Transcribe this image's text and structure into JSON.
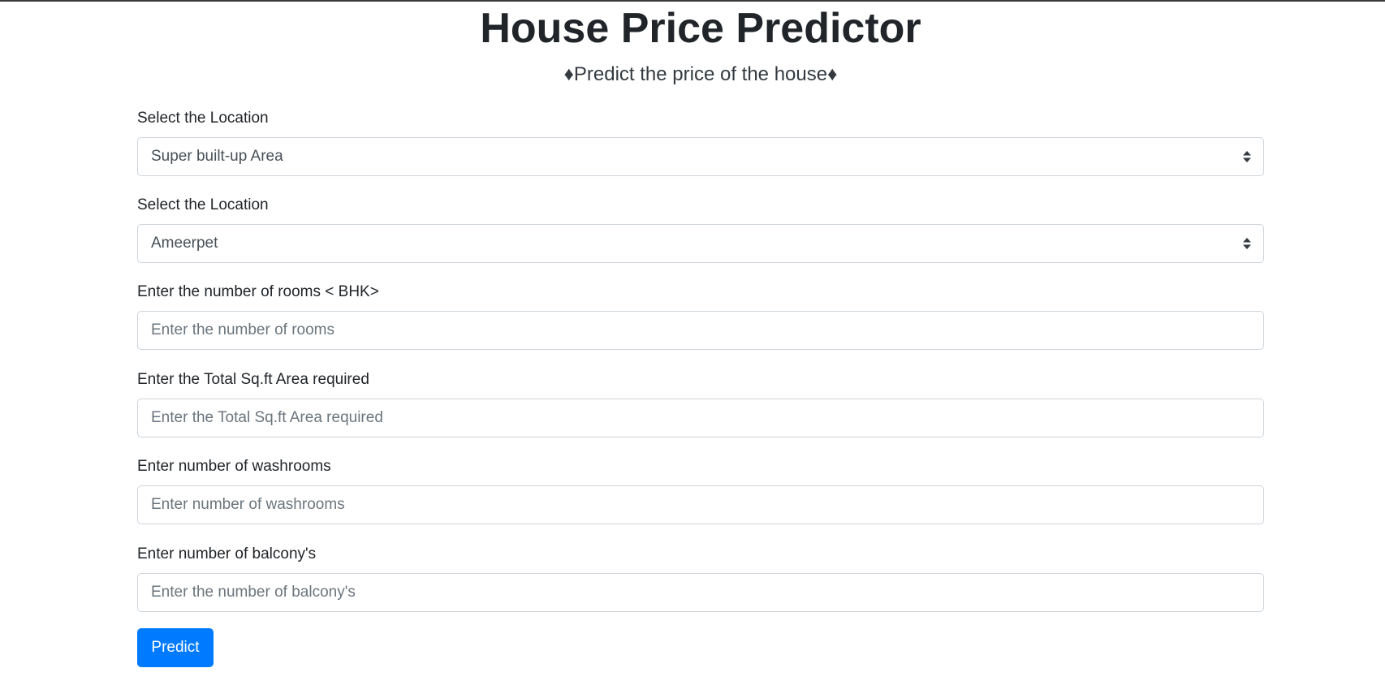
{
  "header": {
    "title": "House Price Predictor",
    "subtitle": "♦Predict the price of the house♦"
  },
  "form": {
    "area_type": {
      "label": "Select the Location",
      "selected": "Super built-up Area"
    },
    "location": {
      "label": "Select the Location",
      "selected": "Ameerpet"
    },
    "rooms": {
      "label": "Enter the number of rooms < BHK>",
      "placeholder": "Enter the number of rooms",
      "value": ""
    },
    "sqft": {
      "label": "Enter the Total Sq.ft Area required",
      "placeholder": "Enter the Total Sq.ft Area required",
      "value": ""
    },
    "washrooms": {
      "label": "Enter number of washrooms",
      "placeholder": "Enter number of washrooms",
      "value": ""
    },
    "balcony": {
      "label": "Enter number of balcony's",
      "placeholder": "Enter the number of balcony's",
      "value": ""
    },
    "submit_label": "Predict"
  },
  "icons": {
    "select_arrow": "chevron-up-down-icon"
  },
  "colors": {
    "primary_button": "#007bff",
    "text": "#212529",
    "border": "#ced4da"
  }
}
